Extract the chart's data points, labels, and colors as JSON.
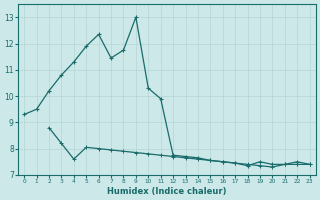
{
  "xlabel": "Humidex (Indice chaleur)",
  "bg_color": "#cce8e8",
  "grid_color": "#b8d8d8",
  "line_color": "#1a6b6b",
  "curve1_x": [
    0,
    1,
    2,
    3,
    4,
    5,
    6,
    7,
    8,
    9,
    10,
    11,
    12,
    13,
    14,
    15,
    16,
    17,
    18,
    19,
    20,
    21,
    22,
    23
  ],
  "curve1_y": [
    9.3,
    9.5,
    10.2,
    10.8,
    11.3,
    11.9,
    12.35,
    11.45,
    11.75,
    13.0,
    10.3,
    9.9,
    7.75,
    7.7,
    7.65,
    7.55,
    7.5,
    7.45,
    7.35,
    7.5,
    7.4,
    7.4,
    7.4,
    7.4
  ],
  "curve2_x": [
    2,
    3,
    4,
    5,
    6,
    7,
    8,
    9,
    10,
    11,
    12,
    13,
    14,
    15,
    16,
    17,
    18,
    19,
    20,
    21,
    22,
    23
  ],
  "curve2_y": [
    8.8,
    8.2,
    7.6,
    8.05,
    8.0,
    7.95,
    7.9,
    7.85,
    7.8,
    7.75,
    7.7,
    7.65,
    7.6,
    7.55,
    7.5,
    7.45,
    7.4,
    7.35,
    7.3,
    7.4,
    7.5,
    7.4
  ],
  "xlim": [
    -0.5,
    23.5
  ],
  "ylim": [
    7.0,
    13.5
  ],
  "yticks": [
    7,
    8,
    9,
    10,
    11,
    12,
    13
  ],
  "xticks": [
    0,
    1,
    2,
    3,
    4,
    5,
    6,
    7,
    8,
    9,
    10,
    11,
    12,
    13,
    14,
    15,
    16,
    17,
    18,
    19,
    20,
    21,
    22,
    23
  ]
}
